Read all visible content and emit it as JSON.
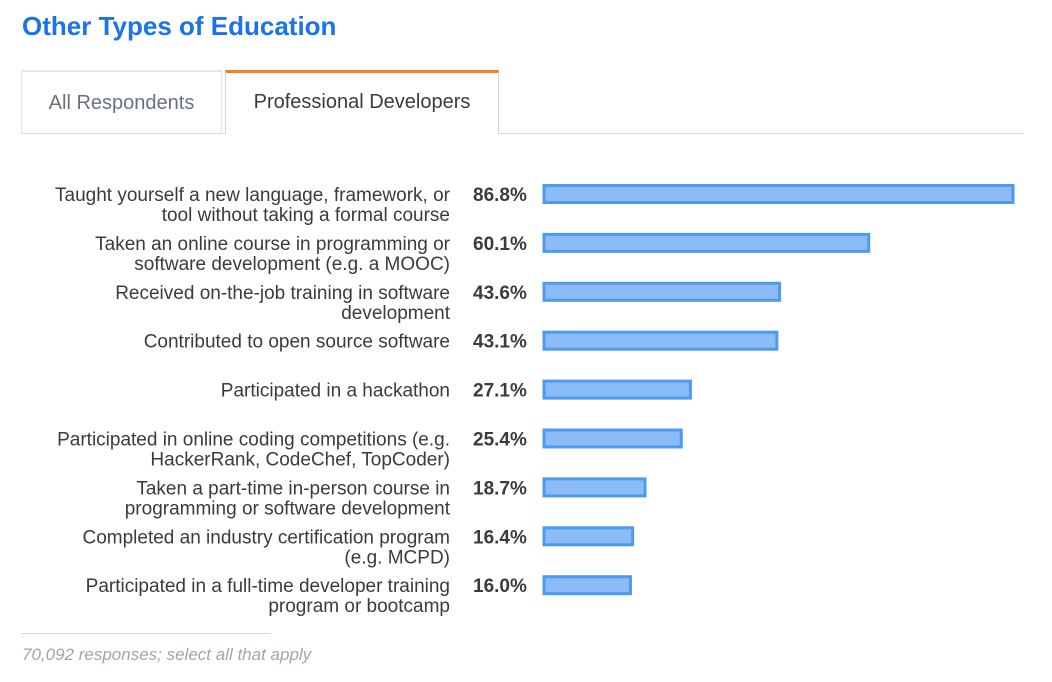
{
  "title": "Other Types of Education",
  "tabs": [
    {
      "label": "All Respondents",
      "active": false
    },
    {
      "label": "Professional Developers",
      "active": true
    }
  ],
  "colors": {
    "title": "#1a73e8",
    "bar_fill": "#8bbcf7",
    "bar_stroke": "#4d9af0",
    "active_tab_accent": "#f48024"
  },
  "chart_data": {
    "type": "bar",
    "orientation": "horizontal",
    "categories": [
      [
        "Taught yourself a new language, framework, or",
        "tool without taking a formal course"
      ],
      [
        "Taken an online course in programming or",
        "software development (e.g. a MOOC)"
      ],
      [
        "Received on-the-job training in software",
        "development"
      ],
      [
        "Contributed to open source software"
      ],
      [
        "Participated in a hackathon"
      ],
      [
        "Participated in online coding competitions (e.g.",
        "HackerRank, CodeChef, TopCoder)"
      ],
      [
        "Taken a part-time in-person course in",
        "programming or software development"
      ],
      [
        "Completed an industry certification program",
        "(e.g. MCPD)"
      ],
      [
        "Participated in a full-time developer training",
        "program or bootcamp"
      ]
    ],
    "values": [
      86.8,
      60.1,
      43.6,
      43.1,
      27.1,
      25.4,
      18.7,
      16.4,
      16.0
    ],
    "value_labels": [
      "86.8%",
      "60.1%",
      "43.6%",
      "43.1%",
      "27.1%",
      "25.4%",
      "18.7%",
      "16.4%",
      "16.0%"
    ],
    "unit": "%",
    "xlim": [
      0,
      86.8
    ],
    "grid": false
  },
  "footnote": "70,092 responses; select all that apply"
}
